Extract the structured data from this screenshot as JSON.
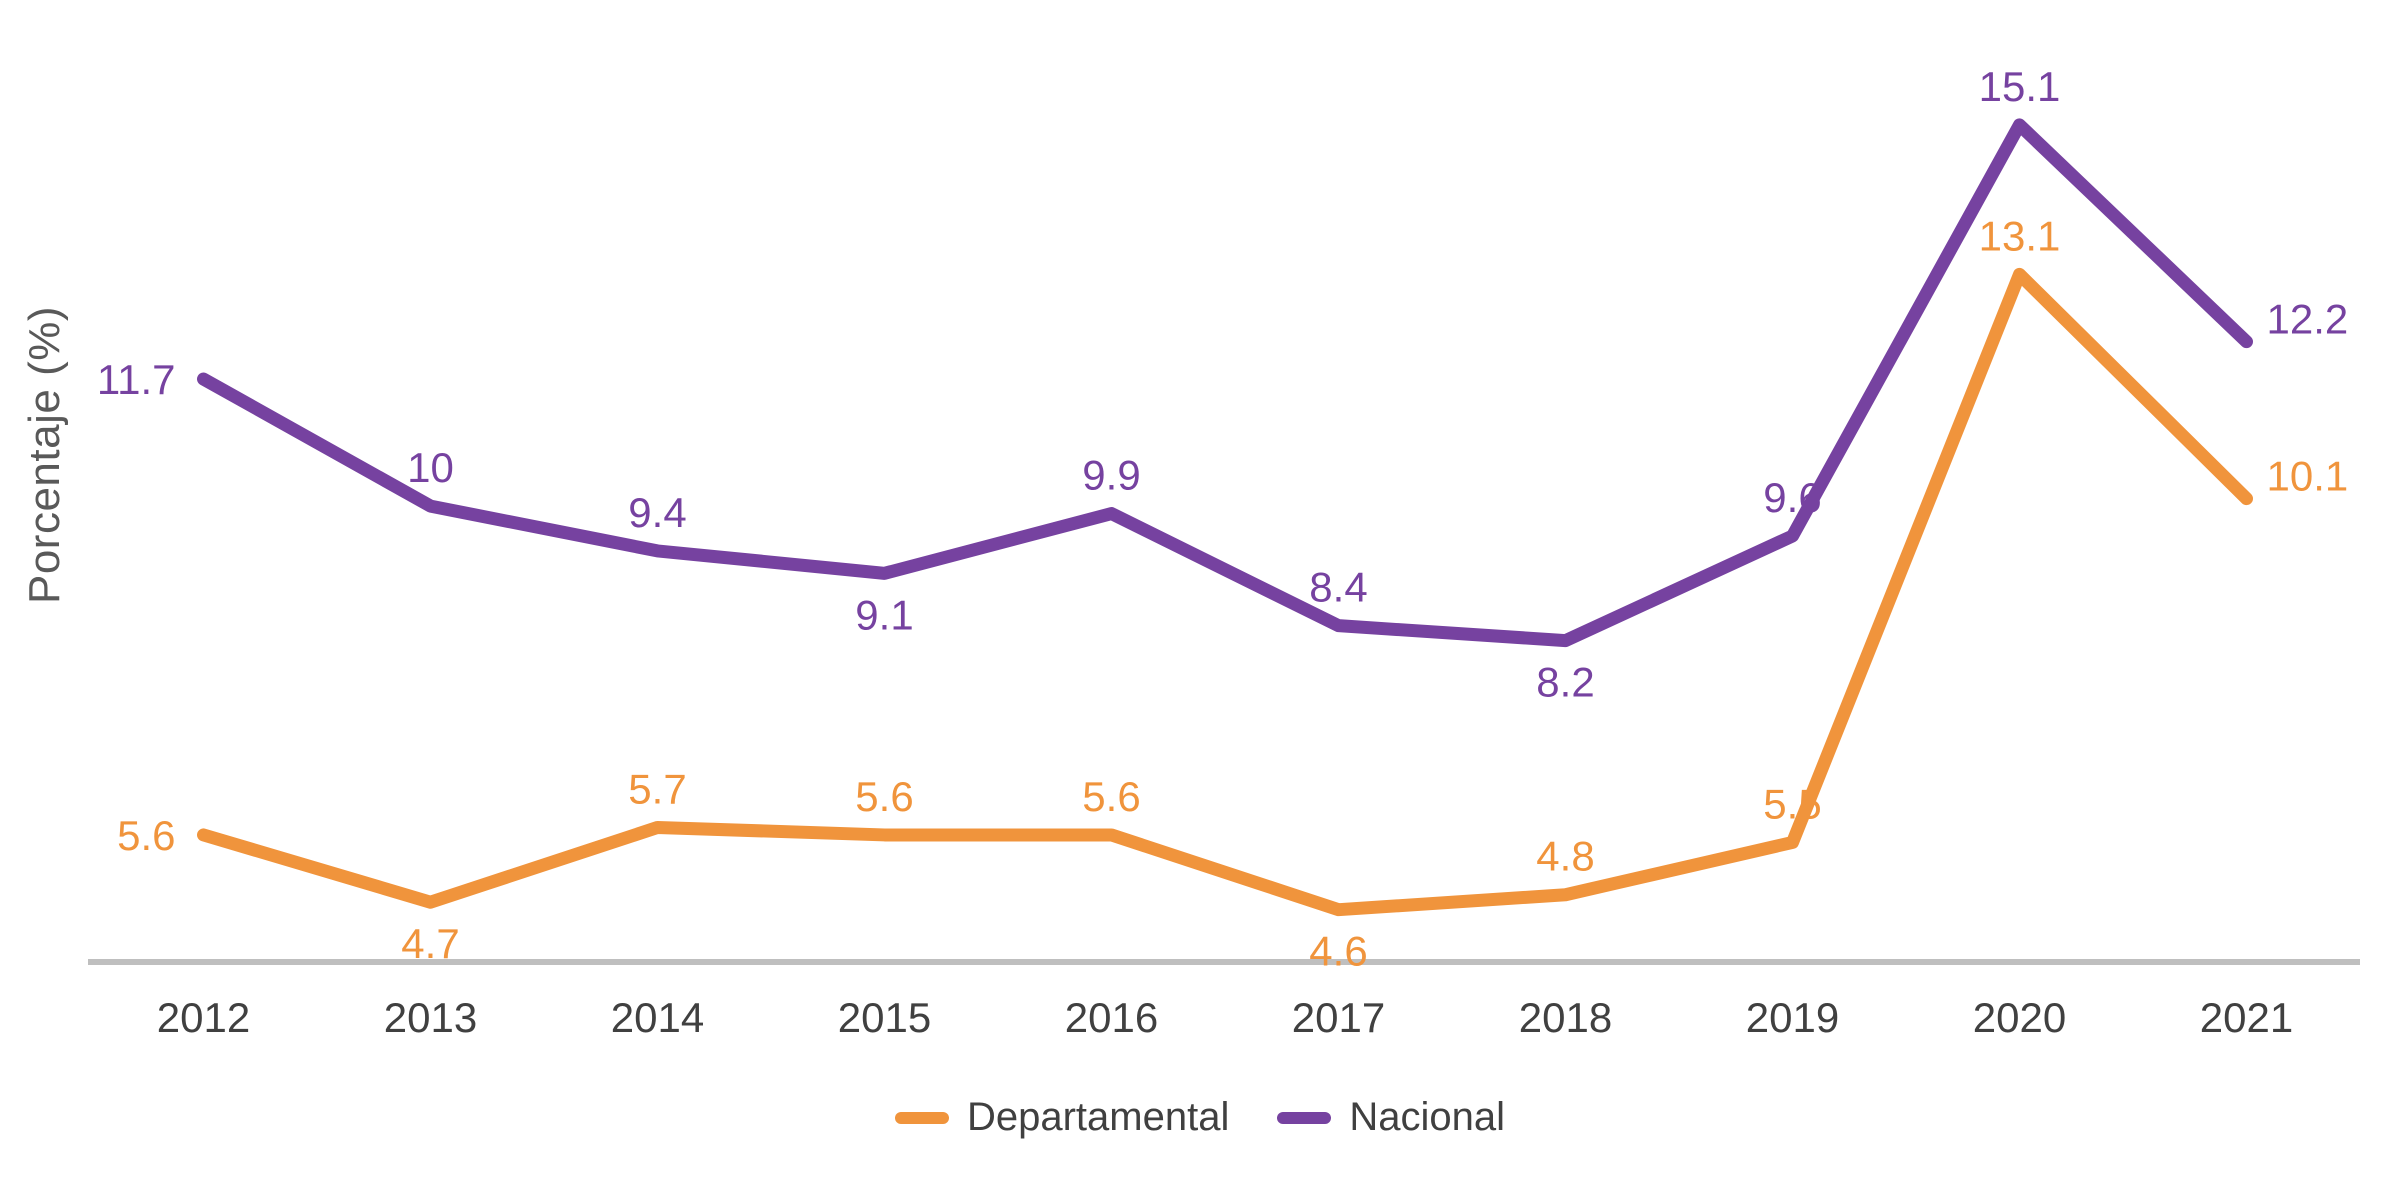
{
  "chart_data": {
    "type": "line",
    "title": "",
    "xlabel": "",
    "ylabel": "Porcentaje (%)",
    "categories": [
      "2012",
      "2013",
      "2014",
      "2015",
      "2016",
      "2017",
      "2018",
      "2019",
      "2020",
      "2021"
    ],
    "series": [
      {
        "name": "Departamental",
        "color": "#F0943C",
        "values": [
          5.6,
          4.7,
          5.7,
          5.6,
          5.6,
          4.6,
          4.8,
          5.5,
          13.1,
          10.1
        ],
        "label_positions": [
          "left",
          "below",
          "above",
          "above",
          "above",
          "below",
          "above",
          "above",
          "above",
          "right-up"
        ]
      },
      {
        "name": "Nacional",
        "color": "#7642A0",
        "values": [
          11.7,
          10,
          9.4,
          9.1,
          9.9,
          8.4,
          8.2,
          9.6,
          15.1,
          12.2
        ],
        "label_positions": [
          "left",
          "above",
          "above",
          "below",
          "above",
          "above",
          "below",
          "above",
          "above",
          "right-up"
        ]
      }
    ],
    "ylim": [
      3.9,
      15.5
    ],
    "grid": false,
    "data_labels": true,
    "legend_position": "bottom",
    "axis_line_color": "#BFBFBF",
    "tick_label_color": "#404040",
    "ylabel_color": "#595959"
  }
}
